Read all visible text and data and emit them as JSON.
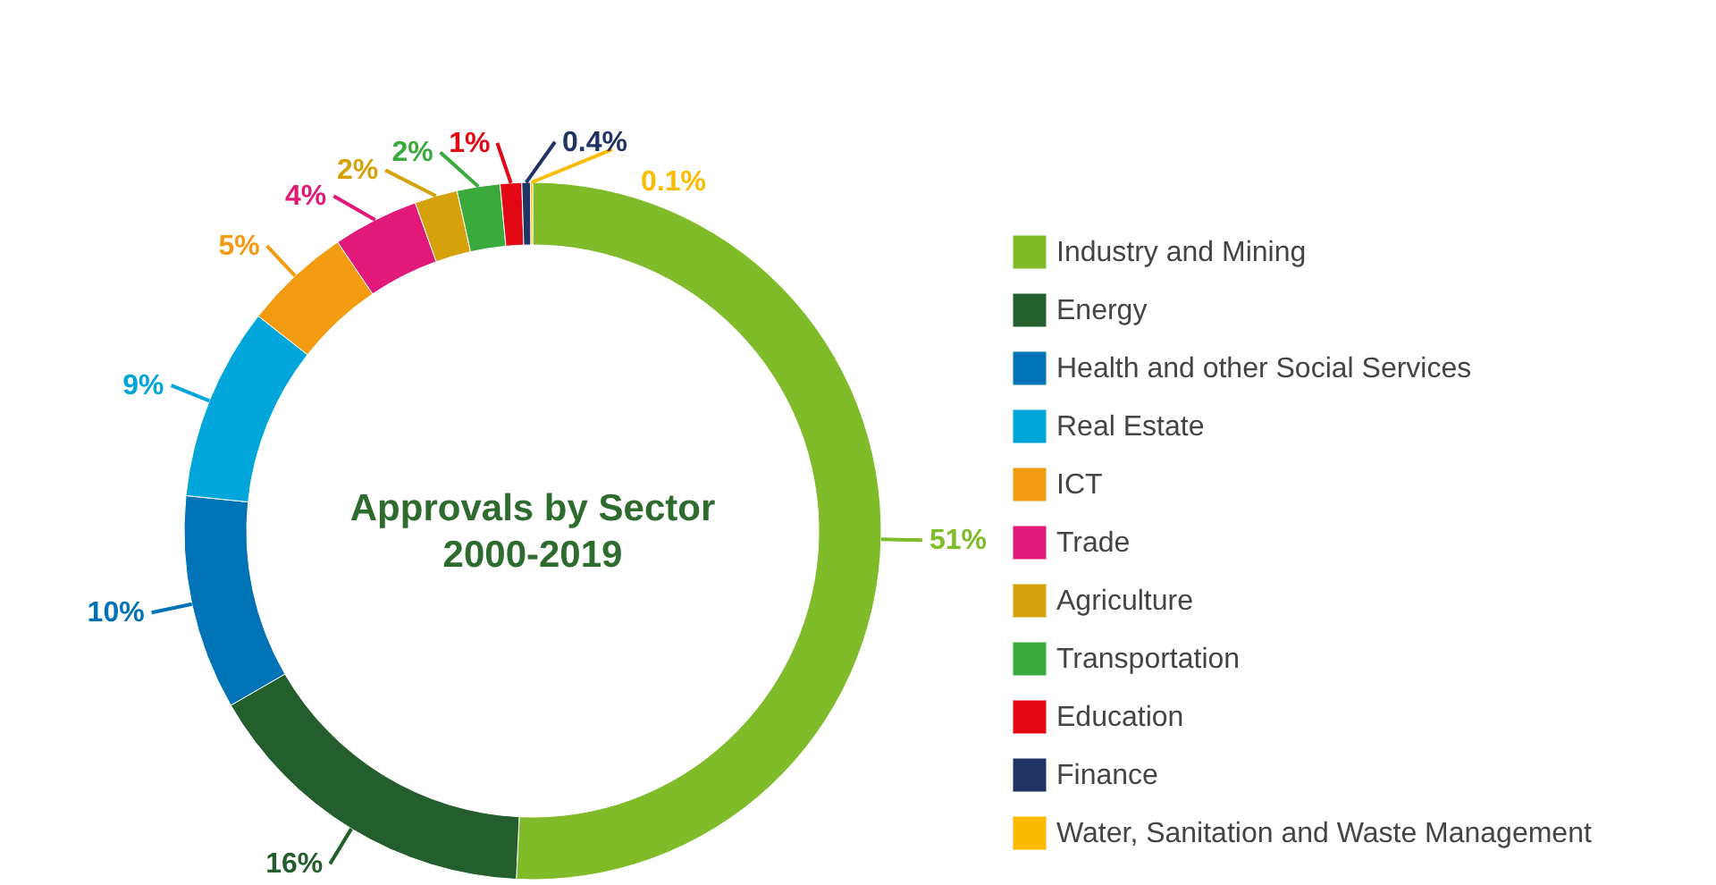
{
  "chart_data": {
    "type": "donut",
    "title": "Approvals by Sector",
    "subtitle": "2000-2019",
    "categories": [
      "Industry and Mining",
      "Energy",
      "Health and other Social Services",
      "Real Estate",
      "ICT",
      "Trade",
      "Agriculture",
      "Transportation",
      "Education",
      "Finance",
      "Water, Sanitation and Waste Management"
    ],
    "values": [
      51,
      16,
      10,
      9,
      5,
      4,
      2,
      2,
      1,
      0.4,
      0.1
    ],
    "colors": [
      "#80bc2a",
      "#245e2c",
      "#0072b6",
      "#00a6d9",
      "#f39c12",
      "#e0197a",
      "#d6a20b",
      "#3aaa3c",
      "#e30613",
      "#1f3463",
      "#fbbb00"
    ],
    "value_labels": [
      "51%",
      "16%",
      "10%",
      "9%",
      "5%",
      "4%",
      "2%",
      "2%",
      "1%",
      "0.4%",
      "0.1%"
    ],
    "legend": "right"
  }
}
